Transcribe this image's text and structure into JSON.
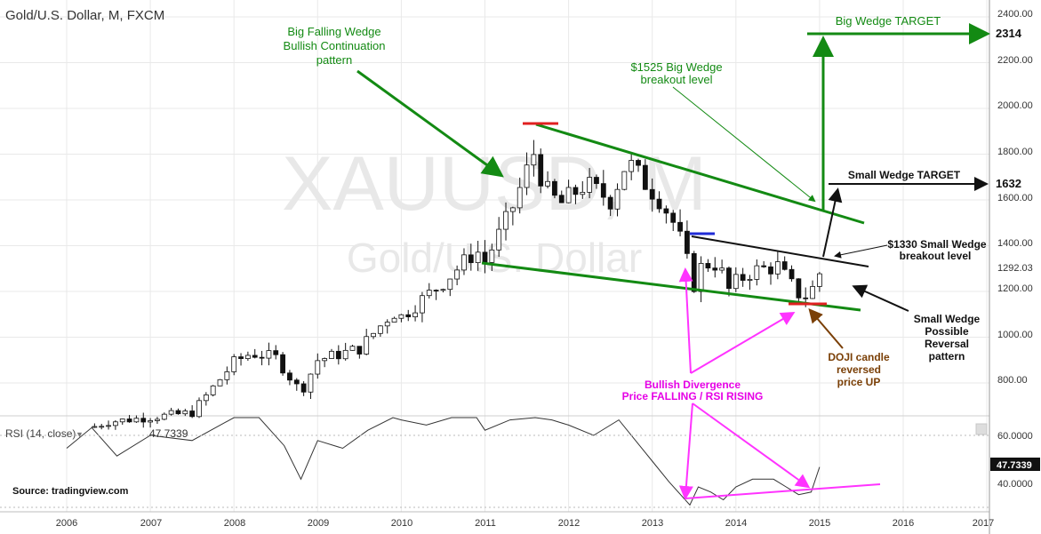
{
  "chart_title": "Gold/U.S. Dollar, M, FXCM",
  "watermark": {
    "symbol": "XAUUSD, M",
    "name": "Gold/U.S. Dollar"
  },
  "source": "Source: tradingview.com",
  "rsi_label": "RSI (14, close)",
  "rsi_value": "47.7339",
  "price_axis": {
    "ticks": [
      "2400.00",
      "2200.00",
      "2000.00",
      "1800.00",
      "1600.00",
      "1400.00",
      "1200.00",
      "1000.00",
      "800.00"
    ],
    "current_price": "1292.03",
    "target_small": "1632",
    "target_big": "2314"
  },
  "rsi_axis": {
    "ticks": [
      "60.0000",
      "40.0000"
    ],
    "current": "47.7339"
  },
  "x_axis": {
    "ticks": [
      "2006",
      "2007",
      "2008",
      "2009",
      "2010",
      "2011",
      "2012",
      "2013",
      "2014",
      "2015",
      "2016",
      "2017"
    ]
  },
  "annotations": {
    "big_wedge_title": [
      "Big Falling Wedge",
      "Bullish Continuation",
      "pattern"
    ],
    "big_wedge_target": "Big Wedge TARGET",
    "big_breakout": [
      "$1525 Big Wedge",
      "breakout level"
    ],
    "small_wedge_target": "Small Wedge TARGET",
    "small_breakout": [
      "$1330 Small Wedge",
      "breakout level"
    ],
    "small_wedge_reversal": [
      "Small Wedge",
      "Possible",
      "Reversal",
      "pattern"
    ],
    "doji": [
      "DOJI candle",
      "reversed",
      "price UP"
    ],
    "divergence": [
      "Bullish Divergence",
      "Price FALLING / RSI RISING"
    ]
  },
  "colors": {
    "green": "#138a13",
    "pink": "#ff33ff",
    "brown": "#7a3f06",
    "red": "#e02020",
    "blue": "#1f2bd6",
    "grid": "#e9e9e9"
  },
  "chart_data": {
    "type": "candlestick",
    "series_name": "Gold/U.S. Dollar, M, FXCM",
    "x": [
      "2006",
      "2007",
      "2008",
      "2009",
      "2010",
      "2011",
      "2012",
      "2013",
      "2014",
      "2015",
      "2016",
      "2017"
    ],
    "y_range": [
      640,
      2450
    ],
    "closes": [
      [
        2006.0,
        570
      ],
      [
        2006.5,
        630
      ],
      [
        2007.0,
        650
      ],
      [
        2007.5,
        670
      ],
      [
        2008.0,
        890
      ],
      [
        2008.2,
        930
      ],
      [
        2008.5,
        910
      ],
      [
        2008.8,
        760
      ],
      [
        2009.0,
        900
      ],
      [
        2009.5,
        950
      ],
      [
        2009.9,
        1110
      ],
      [
        2010.0,
        1090
      ],
      [
        2010.5,
        1240
      ],
      [
        2010.9,
        1380
      ],
      [
        2011.0,
        1330
      ],
      [
        2011.3,
        1540
      ],
      [
        2011.6,
        1820
      ],
      [
        2011.7,
        1650
      ],
      [
        2011.9,
        1580
      ],
      [
        2012.2,
        1670
      ],
      [
        2012.5,
        1600
      ],
      [
        2012.7,
        1770
      ],
      [
        2012.9,
        1680
      ],
      [
        2013.1,
        1600
      ],
      [
        2013.3,
        1470
      ],
      [
        2013.5,
        1230
      ],
      [
        2013.6,
        1320
      ],
      [
        2013.8,
        1320
      ],
      [
        2013.9,
        1200
      ],
      [
        2014.0,
        1240
      ],
      [
        2014.2,
        1290
      ],
      [
        2014.5,
        1310
      ],
      [
        2014.7,
        1210
      ],
      [
        2014.8,
        1170
      ],
      [
        2014.9,
        1200
      ],
      [
        2015.0,
        1280
      ]
    ],
    "rsi": {
      "range": [
        25,
        75
      ],
      "last": 47.7339
    },
    "levels": {
      "big_wedge_breakout": 1525,
      "small_wedge_breakout": 1330,
      "small_target": 1632,
      "big_target": 2314,
      "last": 1292.03
    }
  }
}
